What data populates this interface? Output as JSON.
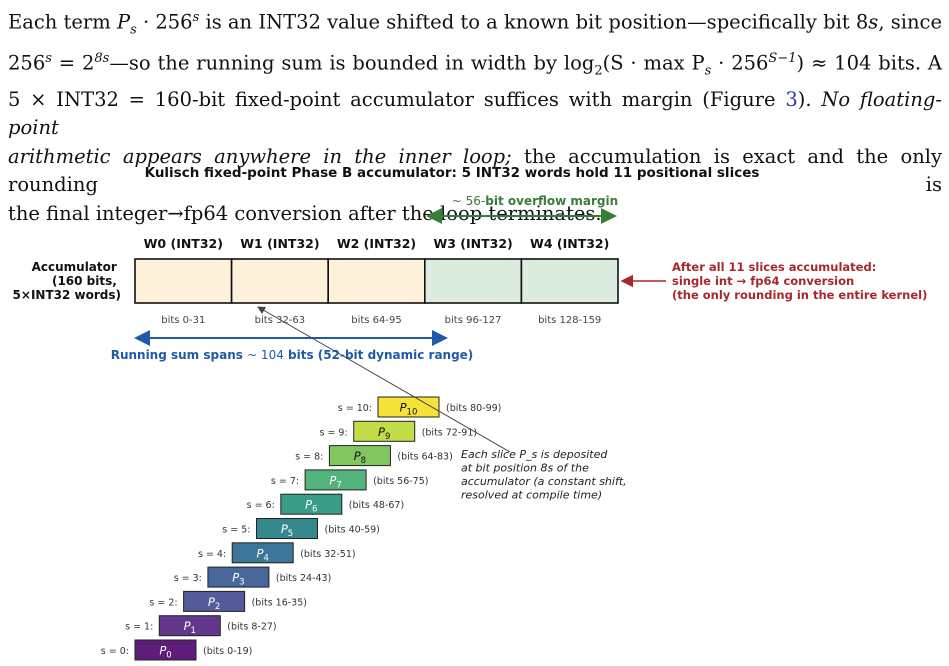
{
  "paragraph": {
    "l1a": "Each term ",
    "l1_expr1": "P",
    "l1_sub": "s",
    "l1_mid": " · 256",
    "l1_sup": "s",
    "l1b": " is an INT32 value shifted to a known bit position—specifically bit 8",
    "l1_s": "s",
    "l1c": ", since",
    "l2a": "256",
    "l2_sup1": "s",
    "l2b": " = 2",
    "l2_sup2": "8s",
    "l2c": "—so the running sum is bounded in width by log",
    "l2_sub": "2",
    "l2d": "(S · max P",
    "l2_sub2": "s",
    "l2e": " · 256",
    "l2_sup3": "S−1",
    "l2f": ") ≈ 104 bits.  A",
    "l3a": "5 × INT32 = 160-bit fixed-point accumulator suffices with margin (Figure ",
    "l3_ref": "3",
    "l3b": ").  ",
    "l3_ital": "No floating-point",
    "l4_ital": "arithmetic appears anywhere in the inner loop;",
    "l4b": " the accumulation is exact and the only rounding is",
    "l5": "the final integer→fp64 conversion after the loop terminates."
  },
  "figure": {
    "title": "Kulisch fixed-point Phase B accumulator: 5 INT32 words hold 11 positional slices",
    "overflow_label_prefix": "~ 56-",
    "overflow_label_bold": "bit overflow margin",
    "accumulator_label": [
      "Accumulator",
      "(160 bits,",
      "5×INT32 words)"
    ],
    "words": [
      {
        "name": "W0 (INT32)",
        "bits": "bits 0-31",
        "fill": "#fdf1da"
      },
      {
        "name": "W1 (INT32)",
        "bits": "bits 32-63",
        "fill": "#fdf1da"
      },
      {
        "name": "W2 (INT32)",
        "bits": "bits 64-95",
        "fill": "#fdf1da"
      },
      {
        "name": "W3 (INT32)",
        "bits": "bits 96-127",
        "fill": "#dcede0"
      },
      {
        "name": "W4 (INT32)",
        "bits": "bits 128-159",
        "fill": "#dcede0"
      }
    ],
    "running_sum_prefix": "Running sum spans ",
    "running_sum_value": "~ 104",
    "running_sum_suffix": " bits (52-bit dynamic range)",
    "right_note": [
      "After all 11 slices accumulated:",
      "single int → fp64 conversion",
      "(the only rounding in the entire kernel)"
    ],
    "slice_note": [
      "Each slice P_s is deposited",
      "at bit position 8s of the",
      "accumulator (a constant shift,",
      "resolved at compile time)"
    ],
    "slices": [
      {
        "s": 0,
        "label": "s = 0:",
        "name": "P",
        "sub": "0",
        "bits": "(bits 0-19)",
        "color": "#5e1d78"
      },
      {
        "s": 1,
        "label": "s = 1:",
        "name": "P",
        "sub": "1",
        "bits": "(bits 8-27)",
        "color": "#62378c"
      },
      {
        "s": 2,
        "label": "s = 2:",
        "name": "P",
        "sub": "2",
        "bits": "(bits 16-35)",
        "color": "#545a9a"
      },
      {
        "s": 3,
        "label": "s = 3:",
        "name": "P",
        "sub": "3",
        "bits": "(bits 24-43)",
        "color": "#48689c"
      },
      {
        "s": 4,
        "label": "s = 4:",
        "name": "P",
        "sub": "4",
        "bits": "(bits 32-51)",
        "color": "#3d7698"
      },
      {
        "s": 5,
        "label": "s = 5:",
        "name": "P",
        "sub": "5",
        "bits": "(bits 40-59)",
        "color": "#34888d"
      },
      {
        "s": 6,
        "label": "s = 6:",
        "name": "P",
        "sub": "6",
        "bits": "(bits 48-67)",
        "color": "#3a9d88"
      },
      {
        "s": 7,
        "label": "s = 7:",
        "name": "P",
        "sub": "7",
        "bits": "(bits 56-75)",
        "color": "#52b47c"
      },
      {
        "s": 8,
        "label": "s = 8:",
        "name": "P",
        "sub": "8",
        "bits": "(bits 64-83)",
        "color": "#82c660"
      },
      {
        "s": 9,
        "label": "s = 9:",
        "name": "P",
        "sub": "9",
        "bits": "(bits 72-91)",
        "color": "#c2dd47"
      },
      {
        "s": 10,
        "label": "s = 10:",
        "name": "P",
        "sub": "10",
        "bits": "(bits 80-99)",
        "color": "#f7e23a"
      }
    ],
    "colors": {
      "green": "#3a7d3a",
      "blue": "#1f5aa6",
      "red": "#a6282a",
      "border": "#111111"
    }
  }
}
